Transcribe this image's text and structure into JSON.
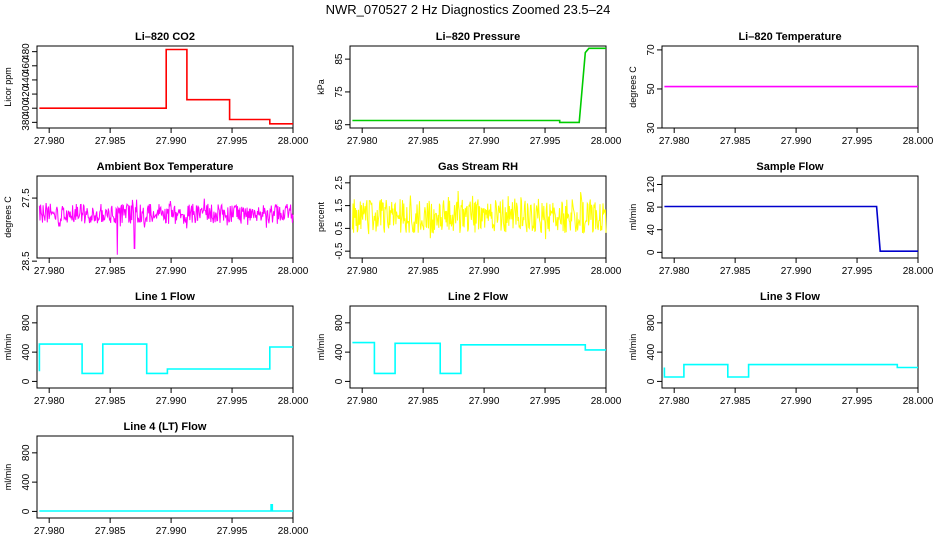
{
  "title": "NWR_070527  2 Hz Diagnostics Zoomed 23.5–24",
  "x_ticks": [
    "27.980",
    "27.985",
    "27.990",
    "27.995",
    "28.000"
  ],
  "chart_data": [
    {
      "type": "line",
      "title": "Li–820 CO2",
      "ylabel": "Licor ppm",
      "color": "#ff0000",
      "xlim": [
        27.979,
        28.0
      ],
      "ylim": [
        372,
        488
      ],
      "yticks": [
        380,
        400,
        420,
        440,
        460,
        480
      ],
      "series": [
        {
          "kind": "step",
          "x": [
            27.979,
            27.9896,
            27.9896,
            27.9913,
            27.9913,
            27.9948,
            27.9948,
            27.9981,
            27.9981,
            28.0
          ],
          "y": [
            400,
            400,
            483,
            483,
            412,
            412,
            384,
            384,
            378,
            378
          ]
        }
      ]
    },
    {
      "type": "line",
      "title": "Li–820 Pressure",
      "ylabel": "kPa",
      "color": "#00cc00",
      "xlim": [
        27.979,
        28.0
      ],
      "ylim": [
        64,
        89
      ],
      "yticks": [
        65,
        75,
        85
      ],
      "series": [
        {
          "kind": "step",
          "x": [
            27.979,
            27.9962,
            27.9962,
            27.9978,
            27.9983,
            27.9986,
            28.0
          ],
          "y": [
            66.3,
            66.3,
            65.7,
            65.7,
            87.0,
            88.3,
            88.3
          ]
        }
      ]
    },
    {
      "type": "line",
      "title": "Li–820 Temperature",
      "ylabel": "degrees C",
      "color": "#ff00ff",
      "xlim": [
        27.979,
        28.0
      ],
      "ylim": [
        30,
        72
      ],
      "yticks": [
        30,
        50,
        70
      ],
      "series": [
        {
          "kind": "step",
          "x": [
            27.979,
            28.0
          ],
          "y": [
            51.2,
            51.2
          ]
        }
      ]
    },
    {
      "type": "line",
      "title": "Ambient Box Temperature",
      "ylabel": "degrees C",
      "color": "#ff00ff",
      "xlim": [
        27.979,
        28.0
      ],
      "ylim": [
        28.45,
        27.15
      ],
      "yticks": [
        28.5,
        27.5
      ],
      "series": [
        {
          "kind": "noise",
          "x": [
            27.979,
            28.0
          ],
          "center": 27.75,
          "amp": 0.16,
          "spikes": [
            [
              27.9856,
              28.4
            ],
            [
              27.987,
              28.3
            ]
          ]
        }
      ]
    },
    {
      "type": "line",
      "title": "Gas Stream RH",
      "ylabel": "percent",
      "color": "#ffff00",
      "xlim": [
        27.979,
        28.0
      ],
      "ylim": [
        -0.8,
        2.8
      ],
      "yticks": [
        -0.5,
        0.5,
        1.5,
        2.5
      ],
      "series": [
        {
          "kind": "noise",
          "x": [
            27.979,
            28.0
          ],
          "center": 1.05,
          "amp": 0.75,
          "spikes": []
        }
      ]
    },
    {
      "type": "line",
      "title": "Sample Flow",
      "ylabel": "ml/min",
      "color": "#0000cc",
      "xlim": [
        27.979,
        28.0
      ],
      "ylim": [
        -10,
        135
      ],
      "yticks": [
        0,
        40,
        80,
        120
      ],
      "series": [
        {
          "kind": "step",
          "x": [
            27.979,
            27.9966,
            27.9966,
            27.9969,
            27.9969,
            28.0
          ],
          "y": [
            81,
            81,
            81,
            2,
            2,
            2
          ]
        }
      ]
    },
    {
      "type": "line",
      "title": "Line 1 Flow",
      "ylabel": "ml/min",
      "color": "#00ffff",
      "xlim": [
        27.979,
        28.0
      ],
      "ylim": [
        -90,
        1030
      ],
      "yticks": [
        0,
        400,
        800
      ],
      "series": [
        {
          "kind": "step",
          "x": [
            27.979,
            27.979,
            27.9827,
            27.9827,
            27.9844,
            27.9844,
            27.988,
            27.988,
            27.9897,
            27.9897,
            27.9981,
            27.9981,
            28.0
          ],
          "y": [
            140,
            510,
            510,
            110,
            110,
            510,
            510,
            110,
            110,
            170,
            170,
            470,
            470
          ]
        }
      ]
    },
    {
      "type": "line",
      "title": "Line 2 Flow",
      "ylabel": "ml/min",
      "color": "#00ffff",
      "xlim": [
        27.979,
        28.0
      ],
      "ylim": [
        -90,
        1030
      ],
      "yticks": [
        0,
        400,
        800
      ],
      "series": [
        {
          "kind": "step",
          "x": [
            27.979,
            27.981,
            27.981,
            27.9827,
            27.9827,
            27.9864,
            27.9864,
            27.9881,
            27.9881,
            27.9983,
            27.9983,
            28.0
          ],
          "y": [
            530,
            530,
            110,
            110,
            520,
            520,
            110,
            110,
            500,
            500,
            430,
            430
          ]
        }
      ]
    },
    {
      "type": "line",
      "title": "Line 3 Flow",
      "ylabel": "ml/min",
      "color": "#00ffff",
      "xlim": [
        27.979,
        28.0
      ],
      "ylim": [
        -90,
        1030
      ],
      "yticks": [
        0,
        400,
        800
      ],
      "series": [
        {
          "kind": "step",
          "x": [
            27.979,
            27.979,
            27.9808,
            27.9808,
            27.9844,
            27.9844,
            27.9861,
            27.9861,
            27.9983,
            27.9983,
            28.0
          ],
          "y": [
            190,
            60,
            60,
            230,
            230,
            60,
            60,
            230,
            230,
            190,
            190
          ]
        }
      ]
    },
    {
      "type": "line",
      "title": "Line 4 (LT) Flow",
      "ylabel": "ml/min",
      "color": "#00ffff",
      "xlim": [
        27.979,
        28.0
      ],
      "ylim": [
        -90,
        1030
      ],
      "yticks": [
        0,
        400,
        800
      ],
      "series": [
        {
          "kind": "step",
          "x": [
            27.979,
            27.9982,
            27.9982,
            27.9983,
            27.9983,
            28.0
          ],
          "y": [
            5,
            5,
            90,
            90,
            5,
            5
          ]
        }
      ]
    }
  ]
}
